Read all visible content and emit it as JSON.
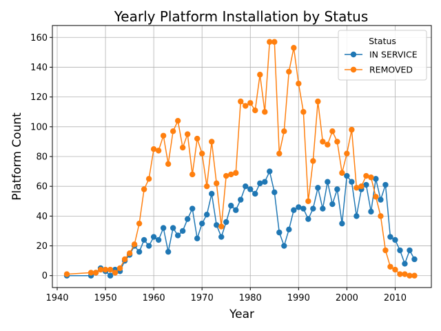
{
  "chart_data": {
    "type": "line",
    "title": "Yearly Platform Installation by Status",
    "xlabel": "Year",
    "ylabel": "Platform Count",
    "xlim": [
      1939,
      2017.5
    ],
    "ylim": [
      -8,
      168
    ],
    "xticks": [
      1940,
      1950,
      1960,
      1970,
      1980,
      1990,
      2000,
      2010
    ],
    "yticks": [
      0,
      20,
      40,
      60,
      80,
      100,
      120,
      140,
      160
    ],
    "grid": true,
    "legend": {
      "title": "Status",
      "placement": "top-right"
    },
    "series": [
      {
        "name": "IN SERVICE",
        "color": "#1f77b4",
        "x": [
          1942,
          1947,
          1948,
          1949,
          1950,
          1951,
          1952,
          1953,
          1954,
          1955,
          1956,
          1957,
          1958,
          1959,
          1960,
          1961,
          1962,
          1963,
          1964,
          1965,
          1966,
          1967,
          1968,
          1969,
          1970,
          1971,
          1972,
          1973,
          1974,
          1975,
          1976,
          1977,
          1978,
          1979,
          1980,
          1981,
          1982,
          1983,
          1984,
          1985,
          1986,
          1987,
          1988,
          1989,
          1990,
          1991,
          1992,
          1993,
          1994,
          1995,
          1996,
          1997,
          1998,
          1999,
          2000,
          2001,
          2002,
          2003,
          2004,
          2005,
          2006,
          2007,
          2008,
          2009,
          2010,
          2011,
          2012,
          2013,
          2014
        ],
        "values": [
          0,
          0,
          2,
          5,
          3,
          0,
          4,
          3,
          10,
          14,
          20,
          16,
          24,
          20,
          26,
          24,
          32,
          16,
          32,
          27,
          30,
          38,
          45,
          25,
          35,
          41,
          55,
          34,
          26,
          36,
          47,
          44,
          51,
          60,
          58,
          55,
          62,
          63,
          70,
          56,
          29,
          20,
          31,
          44,
          46,
          45,
          38,
          45,
          59,
          45,
          63,
          48,
          58,
          35,
          67,
          63,
          40,
          58,
          61,
          43,
          65,
          51,
          61,
          26,
          24,
          17,
          8,
          17,
          11
        ]
      },
      {
        "name": "REMOVED",
        "color": "#ff7f0e",
        "x": [
          1942,
          1947,
          1948,
          1949,
          1950,
          1951,
          1952,
          1953,
          1954,
          1955,
          1956,
          1957,
          1958,
          1959,
          1960,
          1961,
          1962,
          1963,
          1964,
          1965,
          1966,
          1967,
          1968,
          1969,
          1970,
          1971,
          1972,
          1973,
          1974,
          1975,
          1976,
          1977,
          1978,
          1979,
          1980,
          1981,
          1982,
          1983,
          1984,
          1985,
          1986,
          1987,
          1988,
          1989,
          1990,
          1991,
          1992,
          1993,
          1994,
          1995,
          1996,
          1997,
          1998,
          1999,
          2000,
          2001,
          2002,
          2003,
          2004,
          2005,
          2006,
          2007,
          2008,
          2009,
          2010,
          2011,
          2012,
          2013,
          2014
        ],
        "values": [
          1,
          2,
          2,
          4,
          4,
          4,
          2,
          5,
          11,
          15,
          21,
          35,
          58,
          65,
          85,
          84,
          94,
          75,
          97,
          104,
          86,
          95,
          68,
          92,
          82,
          60,
          90,
          62,
          33,
          67,
          68,
          69,
          117,
          114,
          116,
          111,
          135,
          110,
          157,
          157,
          82,
          97,
          137,
          153,
          129,
          110,
          50,
          77,
          117,
          90,
          88,
          97,
          90,
          69,
          82,
          98,
          59,
          60,
          67,
          66,
          53,
          40,
          17,
          6,
          4,
          1,
          1,
          0,
          0
        ]
      }
    ]
  }
}
